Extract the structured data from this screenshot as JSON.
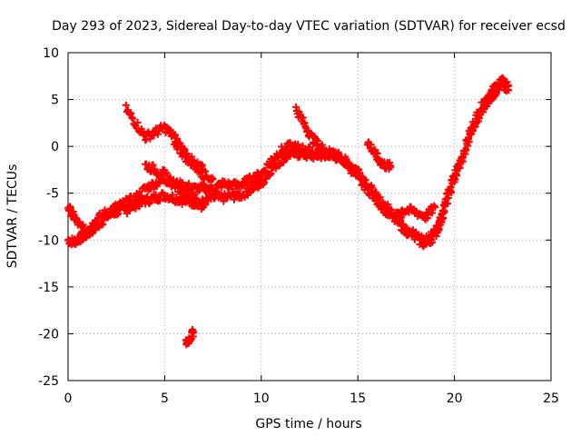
{
  "chart_data": {
    "type": "scatter",
    "title": "Day 293 of 2023, Sidereal Day-to-day VTEC variation (SDTVAR) for receiver ecsd",
    "xlabel": "GPS time / hours",
    "ylabel": "SDTVAR / TECUs",
    "xlim": [
      0,
      25
    ],
    "ylim": [
      -25,
      10
    ],
    "xticks": [
      "0",
      "5",
      "10",
      "15",
      "20",
      "25"
    ],
    "yticks": [
      "10",
      "5",
      "0",
      "-5",
      "-10",
      "-15",
      "-20",
      "-25"
    ],
    "grid": true,
    "marker": "+",
    "color": "#ff0000",
    "series": [
      {
        "name": "trace-main-1",
        "x": [
          0.0,
          0.3,
          0.6,
          0.9,
          1.2,
          1.5,
          2.0,
          2.5,
          3.0,
          3.5,
          4.0,
          4.5,
          5.0,
          5.5,
          6.0,
          6.5,
          7.0,
          7.5,
          8.0,
          8.5,
          9.0,
          9.5,
          10.0,
          10.5,
          11.0,
          11.5,
          12.0,
          12.5,
          13.0,
          13.5,
          14.0,
          14.5,
          15.0,
          15.5,
          16.0,
          16.5,
          17.0,
          17.5,
          18.0,
          18.5,
          19.0,
          19.3,
          19.6,
          20.0,
          20.4,
          20.8,
          21.2,
          21.6,
          22.0,
          22.4,
          22.8
        ],
        "values": [
          -10.0,
          -10.2,
          -9.8,
          -9.5,
          -9.0,
          -8.5,
          -7.5,
          -7.0,
          -6.8,
          -6.2,
          -5.8,
          -5.5,
          -5.2,
          -5.5,
          -5.8,
          -6.0,
          -6.0,
          -5.5,
          -5.5,
          -5.3,
          -5.2,
          -4.5,
          -4.0,
          -2.5,
          -1.5,
          -0.8,
          -0.8,
          -1.0,
          -1.0,
          -0.8,
          -1.0,
          -1.8,
          -2.5,
          -4.0,
          -5.5,
          -6.5,
          -7.5,
          -8.5,
          -9.5,
          -10.0,
          -9.0,
          -7.5,
          -5.5,
          -3.0,
          -1.0,
          1.5,
          3.5,
          5.0,
          6.0,
          7.0,
          6.5
        ]
      },
      {
        "name": "trace-main-2",
        "x": [
          0.0,
          0.3,
          0.6,
          0.9,
          1.2,
          1.5,
          2.0,
          2.5,
          3.0,
          3.5,
          4.0,
          4.5,
          5.0,
          5.5,
          6.0,
          6.5,
          7.0,
          7.5,
          8.0,
          8.5,
          9.0,
          9.5,
          10.0,
          10.5,
          11.0,
          11.5,
          12.0,
          12.5,
          13.0,
          13.5,
          14.0,
          14.5,
          15.0,
          15.5,
          16.0,
          16.5,
          17.0,
          17.5,
          18.0,
          18.5,
          19.0,
          19.3,
          19.6,
          20.0,
          20.4,
          20.8,
          21.2,
          21.6,
          22.0,
          22.4,
          22.8
        ],
        "values": [
          -6.5,
          -7.5,
          -8.5,
          -9.0,
          -8.5,
          -7.8,
          -7.0,
          -6.5,
          -6.0,
          -5.5,
          -4.5,
          -4.0,
          -3.5,
          -4.0,
          -4.2,
          -4.5,
          -4.5,
          -4.5,
          -4.0,
          -4.2,
          -4.0,
          -3.5,
          -3.0,
          -1.5,
          -0.5,
          0.0,
          -0.2,
          -0.5,
          -0.8,
          -0.8,
          -1.2,
          -2.0,
          -3.5,
          -4.5,
          -5.8,
          -7.0,
          -8.0,
          -9.0,
          -9.8,
          -10.5,
          -9.5,
          -8.0,
          -6.0,
          -3.5,
          -1.5,
          1.0,
          3.0,
          4.5,
          5.5,
          6.5,
          6.0
        ]
      },
      {
        "name": "trace-arc-a",
        "x": [
          3.0,
          3.5,
          4.0,
          4.5,
          5.0,
          5.5,
          6.0,
          6.5,
          7.0
        ],
        "values": [
          4.0,
          2.5,
          1.0,
          1.5,
          2.0,
          1.0,
          -0.5,
          -1.8,
          -2.5
        ]
      },
      {
        "name": "trace-arc-b",
        "x": [
          5.5,
          6.0,
          6.5,
          7.0,
          7.5
        ],
        "values": [
          0.5,
          -1.0,
          -2.0,
          -3.0,
          -3.5
        ]
      },
      {
        "name": "trace-arc-c",
        "x": [
          4.0,
          4.5,
          5.0,
          5.5,
          6.0,
          6.5,
          7.0
        ],
        "values": [
          -2.0,
          -2.5,
          -3.0,
          -4.0,
          -5.0,
          -5.5,
          -6.5
        ]
      },
      {
        "name": "trace-arc-d",
        "x": [
          11.8,
          12.2,
          12.6,
          13.0,
          13.4,
          13.8
        ],
        "values": [
          4.0,
          2.5,
          1.0,
          0.0,
          -0.5,
          -1.0
        ]
      },
      {
        "name": "trace-arc-e",
        "x": [
          15.5,
          15.8,
          16.1,
          16.4,
          16.7
        ],
        "values": [
          0.5,
          -0.5,
          -1.5,
          -2.0,
          -2.2
        ]
      },
      {
        "name": "trace-dip",
        "x": [
          17.0,
          17.5,
          18.0,
          18.5,
          19.0
        ],
        "values": [
          -7.0,
          -6.8,
          -7.0,
          -7.5,
          -6.5
        ]
      },
      {
        "name": "trace-outlier",
        "x": [
          6.1,
          6.3,
          6.5
        ],
        "values": [
          -21.0,
          -20.5,
          -19.8
        ]
      }
    ]
  }
}
